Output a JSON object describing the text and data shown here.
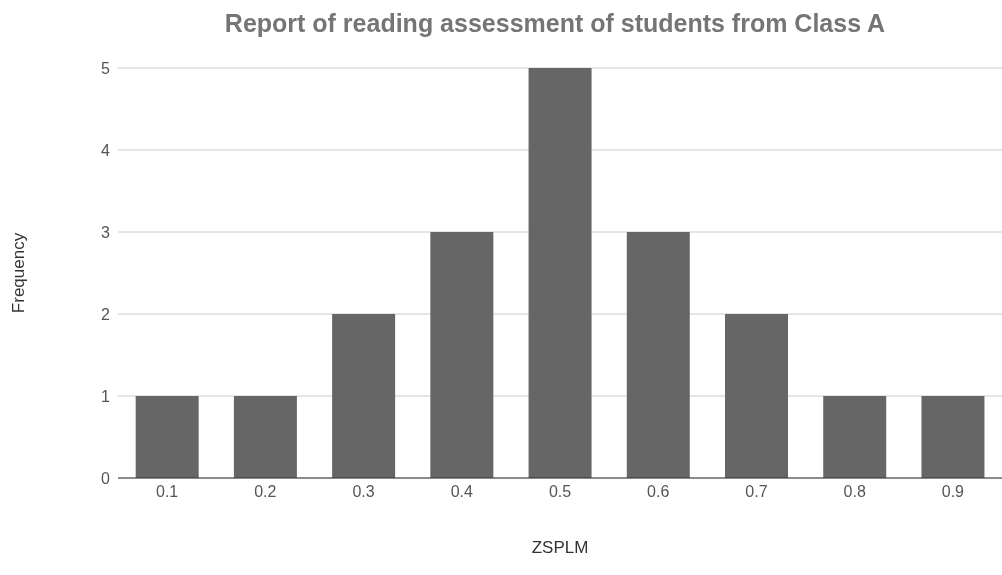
{
  "chart_data": {
    "type": "bar",
    "title": "Report of reading assessment of students from Class A",
    "xlabel": "ZSPLM",
    "ylabel": "Frequency",
    "categories": [
      "0.1",
      "0.2",
      "0.3",
      "0.4",
      "0.5",
      "0.6",
      "0.7",
      "0.8",
      "0.9"
    ],
    "values": [
      1,
      1,
      2,
      3,
      5,
      3,
      2,
      1,
      1
    ],
    "color": "#666666",
    "ylim": [
      0,
      5
    ],
    "yticks": [
      0,
      1,
      2,
      3,
      4,
      5
    ],
    "grid": "y"
  }
}
